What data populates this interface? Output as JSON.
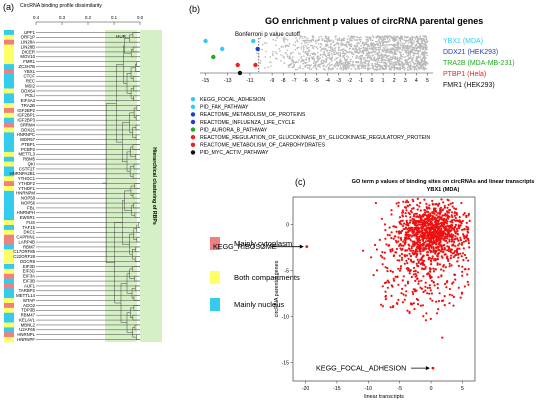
{
  "panel_a": {
    "letter": "(a)",
    "axis_title": "CircRNA binding profile dissimilarity",
    "ticks": [
      "0.4",
      "0.3",
      "0.2",
      "0.1",
      "0.0"
    ],
    "side_label": "Hierarchical clustering of RBPs",
    "cluster_label": "HUR"
  },
  "panel_b": {
    "letter": "(b)",
    "title": "GO enrichment p values of circRNA parental genes",
    "cutoff_label": "Bonferroni p value cutoff"
  },
  "panel_c": {
    "letter": "(c)",
    "title_line1": "GO term p values of binding sites on circRNAs and linear transcripts",
    "title_line2": "YBX1 (MDA)",
    "annot_ribosome": "KEGG_RIBOSOME",
    "annot_focal": "KEGG_FOCAL_ADHESION"
  },
  "legend_localization": [
    {
      "label": "Mainly cytoplasm",
      "color": "#f08080"
    },
    {
      "label": "Both compartments",
      "color": "#ffff66"
    },
    {
      "label": "Mainly nucleus",
      "color": "#33ccee"
    }
  ],
  "chart_data": [
    {
      "type": "dendrogram",
      "x_axis": {
        "label": "CircRNA binding profile dissimilarity",
        "range": [
          0.4,
          0.0
        ]
      },
      "leaves": [
        "UPF1",
        "ORF1P",
        "LIN28A",
        "LIN28B",
        "DICER",
        "MOV10",
        "FMR1",
        "ZC3H7B",
        "YBX1",
        "CTCF",
        "REC",
        "MSI2",
        "DDX54",
        "POLI",
        "EIF4A3",
        "TRA2B",
        "IGF2BP2",
        "IGF2BP1",
        "IGF2BP3",
        "SRRM4",
        "DDX21",
        "HNRNPC",
        "WDR57",
        "PTBP1",
        "PCBP2",
        "METTL3",
        "RBM5",
        "QKI",
        "CSTF2T",
        "HNRNPA2B1",
        "YTHDC1",
        "YTHDF2",
        "YTHDF1",
        "HNRNPM",
        "NOP58",
        "NOP56",
        "FBL",
        "HNRNPH",
        "EWSR1",
        "FUS",
        "TAF15",
        "DKC1",
        "CAPRIN1",
        "LARP4B",
        "RBM7",
        "C17ORF85",
        "C22ORF28",
        "DGCR8",
        "EIF3D",
        "EIF3G",
        "EIF3A",
        "EIF3B",
        "AUF1",
        "TARBP2",
        "METTL14",
        "WTAP",
        "AGO2",
        "TDP3B",
        "RBM47",
        "KELAVL",
        "MBNL2",
        "U2AF65",
        "HNRNPL",
        "HNRNPF"
      ],
      "localization": [
        "nucleus",
        "both",
        "cytoplasm",
        "both",
        "both",
        "both",
        "both",
        "nucleus",
        "cytoplasm",
        "nucleus",
        "nucleus",
        "nucleus",
        "both",
        "nucleus",
        "nucleus",
        "both",
        "cytoplasm",
        "both",
        "nucleus",
        "cytoplasm",
        "both",
        "nucleus",
        "nucleus",
        "nucleus",
        "nucleus",
        "both",
        "nucleus",
        "both",
        "nucleus",
        "nucleus",
        "both",
        "cytoplasm",
        "both",
        "nucleus",
        "nucleus",
        "nucleus",
        "nucleus",
        "nucleus",
        "nucleus",
        "both",
        "nucleus",
        "both",
        "cytoplasm",
        "cytoplasm",
        "nucleus",
        "both",
        "both",
        "both",
        "nucleus",
        "both",
        "cytoplasm",
        "nucleus",
        "cytoplasm",
        "nucleus",
        "nucleus",
        "both",
        "cytoplasm",
        "both",
        "nucleus",
        "nucleus",
        "both",
        "nucleus",
        "cytoplasm",
        "both"
      ],
      "clusters": [
        {
          "start": 0,
          "end": 5,
          "root": 0.06
        },
        {
          "start": 6,
          "end": 14,
          "root": 0.05
        },
        {
          "start": 15,
          "end": 22,
          "root": 0.04
        },
        {
          "start": 23,
          "end": 30,
          "root": 0.05
        },
        {
          "start": 31,
          "end": 38,
          "root": 0.06
        },
        {
          "start": 39,
          "end": 47,
          "root": 0.04
        },
        {
          "start": 48,
          "end": 55,
          "root": 0.05
        },
        {
          "start": 56,
          "end": 63,
          "root": 0.05
        }
      ],
      "highlight_label": "HUR",
      "side_label": "Hierarchical clustering of RBPs"
    },
    {
      "type": "scatter",
      "title": "GO enrichment p values of circRNA parental genes",
      "x_ticks": [
        -15,
        -13,
        -11,
        -9,
        -8,
        -7,
        -6,
        -5,
        -4,
        -3,
        -2,
        -1,
        0,
        1,
        2,
        3,
        4,
        5
      ],
      "x_range": [
        -15.5,
        5.5
      ],
      "cutoff_x": -10.2,
      "cutoff_label": "Bonferroni p value cutoff",
      "series": [
        {
          "name": "YBX1 (MDA)",
          "color": "#33ccee"
        },
        {
          "name": "DDX21 (HEK293)",
          "color": "#1e3cc8"
        },
        {
          "name": "TRA2B (MDA-MB-231)",
          "color": "#22aa22"
        },
        {
          "name": "PTBP1 (Hela)",
          "color": "#ee2222"
        },
        {
          "name": "FMR1 (HEK293)",
          "color": "#111111"
        }
      ],
      "highlighted_points": [
        {
          "x": -15,
          "row": 0,
          "color": "#33ccee"
        },
        {
          "x": -10.7,
          "row": 0,
          "color": "#33ccee"
        },
        {
          "x": -10.3,
          "row": 1,
          "color": "#1e3cc8"
        },
        {
          "x": -13.5,
          "row": 1,
          "color": "#33ccee"
        },
        {
          "x": -14.3,
          "row": 2,
          "color": "#22aa22"
        },
        {
          "x": -10.5,
          "row": 3,
          "color": "#ee2222"
        },
        {
          "x": -12.1,
          "row": 3,
          "color": "#ee2222"
        },
        {
          "x": -11.9,
          "row": 4,
          "color": "#111111"
        }
      ],
      "go_terms": [
        {
          "label": "KEGG_FOCAL_ADHESION",
          "color": "#33ccee"
        },
        {
          "label": "PID_FAK_PATHWAY",
          "color": "#33ccee"
        },
        {
          "label": "REACTOME_METABOLISM_OF_PROTEINS",
          "color": "#1e3cc8"
        },
        {
          "label": "REACTOME_INFLUENZA_LIFE_CYCLE",
          "color": "#1e3cc8"
        },
        {
          "label": "PID_AURORA_B_PATHWAY",
          "color": "#22aa22"
        },
        {
          "label": "REACTOME_REGULATION_OF_GLUCOKINASE_BY_GLUCOKINASE_REGULATORY_PROTEIN",
          "color": "#ee2222"
        },
        {
          "label": "REACTOME_METABOLISM_OF_CARBOHYDRATES",
          "color": "#ee2222"
        },
        {
          "label": "PID_MYC_ACTIV_PATHWAY",
          "color": "#111111"
        }
      ]
    },
    {
      "type": "scatter",
      "title": "GO term p values of binding sites on circRNAs and linear transcripts",
      "subtitle": "YBX1 (MDA)",
      "xlabel": "linear transcripts",
      "ylabel": "circRNA parental genes",
      "x_ticks": [
        -20,
        -15,
        -10,
        -5,
        0,
        5
      ],
      "y_ticks": [
        0,
        -5,
        -10,
        -15
      ],
      "xlim": [
        -22,
        7
      ],
      "ylim": [
        -17,
        3
      ],
      "color": "#ee1111",
      "annotated_points": [
        {
          "label": "KEGG_RIBOSOME",
          "x": -19.8,
          "y": -2.4
        },
        {
          "label": "KEGG_FOCAL_ADHESION",
          "x": 0.3,
          "y": -15.6
        }
      ]
    }
  ]
}
